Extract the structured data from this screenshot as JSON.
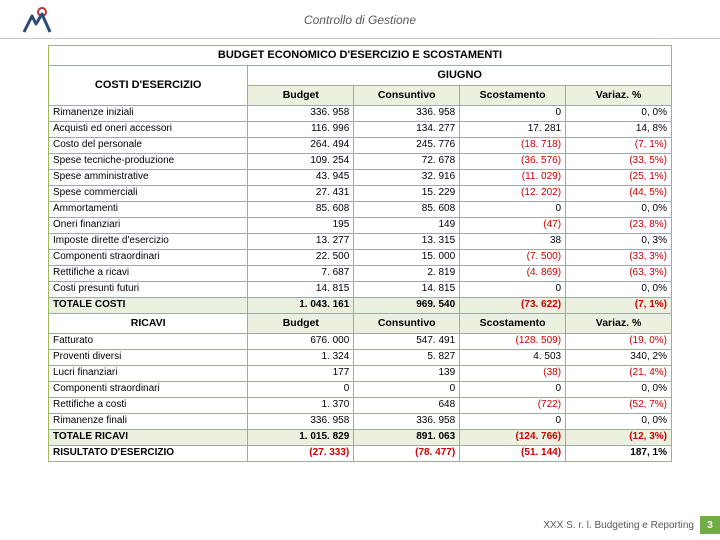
{
  "header": {
    "title": "Controllo di Gestione"
  },
  "table": {
    "title": "BUDGET ECONOMICO D'ESERCIZIO E SCOSTAMENTI",
    "month": "GIUGNO",
    "section1": "COSTI D'ESERCIZIO",
    "section2": "RICAVI",
    "cols": [
      "Budget",
      "Consuntivo",
      "Scostamento",
      "Variaz. %"
    ],
    "costs": [
      {
        "label": "Rimanenze iniziali",
        "b": "336. 958",
        "c": "336. 958",
        "s": "0",
        "v": "0, 0%",
        "sn": false,
        "vn": false
      },
      {
        "label": "Acquisti ed oneri accessori",
        "b": "116. 996",
        "c": "134. 277",
        "s": "17. 281",
        "v": "14, 8%",
        "sn": false,
        "vn": false
      },
      {
        "label": "Costo del personale",
        "b": "264. 494",
        "c": "245. 776",
        "s": "(18. 718)",
        "v": "(7, 1%)",
        "sn": true,
        "vn": true
      },
      {
        "label": "Spese tecniche-produzione",
        "b": "109. 254",
        "c": "72. 678",
        "s": "(36. 576)",
        "v": "(33, 5%)",
        "sn": true,
        "vn": true
      },
      {
        "label": "Spese amministrative",
        "b": "43. 945",
        "c": "32. 916",
        "s": "(11. 029)",
        "v": "(25, 1%)",
        "sn": true,
        "vn": true
      },
      {
        "label": "Spese commerciali",
        "b": "27. 431",
        "c": "15. 229",
        "s": "(12. 202)",
        "v": "(44, 5%)",
        "sn": true,
        "vn": true
      },
      {
        "label": "Ammortamenti",
        "b": "85. 608",
        "c": "85. 608",
        "s": "0",
        "v": "0, 0%",
        "sn": false,
        "vn": false
      },
      {
        "label": "Oneri finanziari",
        "b": "195",
        "c": "149",
        "s": "(47)",
        "v": "(23, 8%)",
        "sn": true,
        "vn": true
      },
      {
        "label": "Imposte dirette d'esercizio",
        "b": "13. 277",
        "c": "13. 315",
        "s": "38",
        "v": "0, 3%",
        "sn": false,
        "vn": false
      },
      {
        "label": "Componenti straordinari",
        "b": "22. 500",
        "c": "15. 000",
        "s": "(7. 500)",
        "v": "(33, 3%)",
        "sn": true,
        "vn": true
      },
      {
        "label": "Rettifiche a ricavi",
        "b": "7. 687",
        "c": "2. 819",
        "s": "(4. 869)",
        "v": "(63, 3%)",
        "sn": true,
        "vn": true
      },
      {
        "label": "Costi presunti futuri",
        "b": "14. 815",
        "c": "14. 815",
        "s": "0",
        "v": "0, 0%",
        "sn": false,
        "vn": false
      }
    ],
    "costs_total": {
      "label": "TOTALE COSTI",
      "b": "1. 043. 161",
      "c": "969. 540",
      "s": "(73. 622)",
      "v": "(7, 1%)",
      "sn": true,
      "vn": true
    },
    "revenues": [
      {
        "label": "Fatturato",
        "b": "676. 000",
        "c": "547. 491",
        "s": "(128. 509)",
        "v": "(19, 0%)",
        "sn": true,
        "vn": true,
        "sep": true
      },
      {
        "label": "Proventi diversi",
        "b": "1. 324",
        "c": "5. 827",
        "s": "4. 503",
        "v": "340, 2%",
        "sn": false,
        "vn": false
      },
      {
        "label": "Lucri finanziari",
        "b": "177",
        "c": "139",
        "s": "(38)",
        "v": "(21, 4%)",
        "sn": true,
        "vn": true
      },
      {
        "label": "Componenti straordinari",
        "b": "0",
        "c": "0",
        "s": "0",
        "v": "0, 0%",
        "sn": false,
        "vn": false
      },
      {
        "label": "Rettifiche a costi",
        "b": "1. 370",
        "c": "648",
        "s": "(722)",
        "v": "(52, 7%)",
        "sn": true,
        "vn": true
      },
      {
        "label": "Rimanenze finali",
        "b": "336. 958",
        "c": "336. 958",
        "s": "0",
        "v": "0, 0%",
        "sn": false,
        "vn": false
      }
    ],
    "revenues_total": {
      "label": "TOTALE RICAVI",
      "b": "1. 015. 829",
      "c": "891. 063",
      "s": "(124. 766)",
      "v": "(12, 3%)",
      "sn": true,
      "vn": true
    },
    "result": {
      "label": "RISULTATO D'ESERCIZIO",
      "b": "(27. 333)",
      "c": "(78. 477)",
      "s": "(51. 144)",
      "v": "187, 1%",
      "bn": true,
      "cn": true,
      "sn": true,
      "vn": false
    }
  },
  "footer": {
    "text": "XXX S. r. l. Budgeting e Reporting",
    "page": "3"
  },
  "colors": {
    "border": "#9bbb59",
    "highlight_bg": "#ebf1de",
    "neg_text": "#cc0000",
    "footer_page_bg": "#70ad47"
  }
}
